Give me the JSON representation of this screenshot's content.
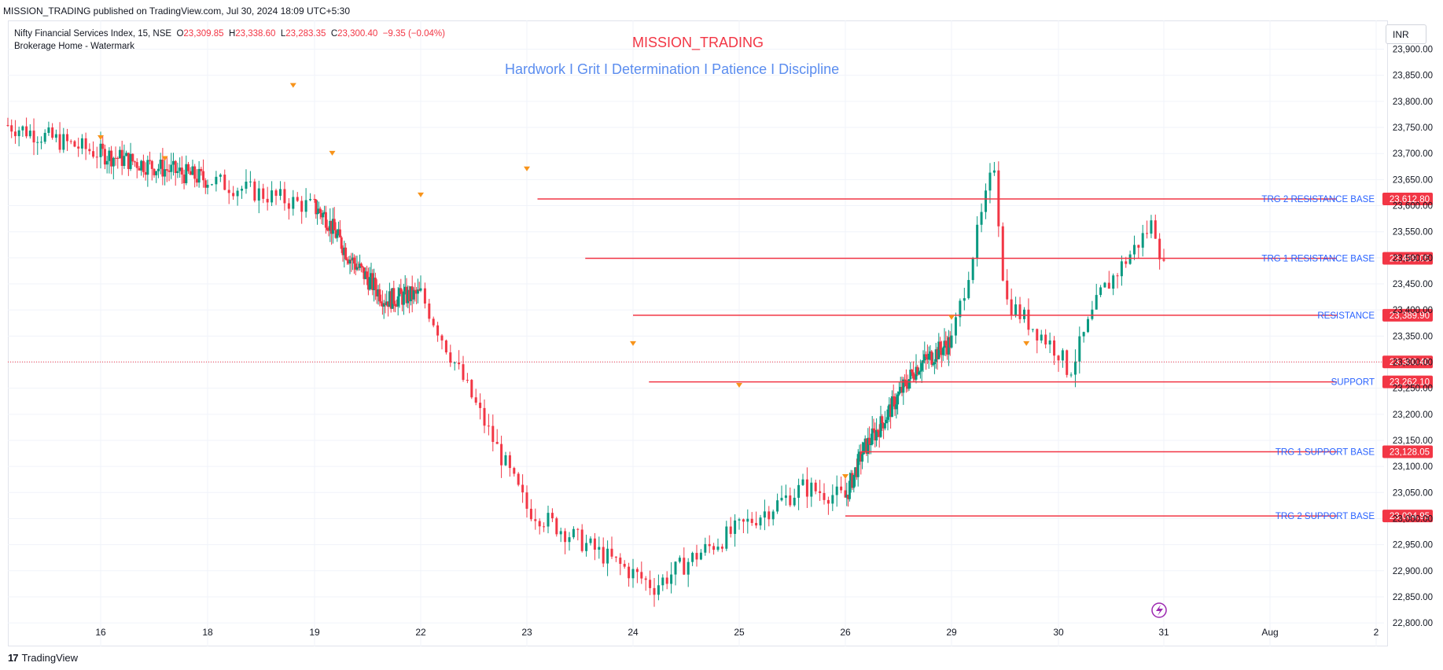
{
  "header": {
    "publish_line": "MISSION_TRADING published on TradingView.com, Jul 30, 2024 18:09 UTC+5:30"
  },
  "legend": {
    "symbol": "Nifty Financial Services Index, 15, NSE",
    "o_label": "O",
    "o_value": "23,309.85",
    "h_label": "H",
    "h_value": "23,338.60",
    "l_label": "L",
    "l_value": "23,283.35",
    "c_label": "C",
    "c_value": "23,300.40",
    "change": "−9.35 (−0.04%)",
    "indicator": "Brokerage Home - Watermark"
  },
  "watermark": {
    "title": "MISSION_TRADING",
    "subtitle": "Hardwork I Grit I Determination I Patience I Discipline"
  },
  "currency": "INR",
  "footer": {
    "logo": "17",
    "brand": "TradingView"
  },
  "colors": {
    "up": "#089981",
    "down": "#f23645",
    "level_line": "#f23645",
    "level_text": "#2962ff",
    "marker": "#f7931a",
    "grid": "#f0f3fa"
  },
  "chart_data": {
    "type": "candlestick",
    "ylim": [
      22770,
      23925
    ],
    "yticks": [
      22800,
      22850,
      22900,
      22950,
      23000,
      23050,
      23100,
      23150,
      23200,
      23250,
      23300,
      23350,
      23400,
      23450,
      23500,
      23550,
      23600,
      23650,
      23700,
      23750,
      23800,
      23850,
      23900
    ],
    "ytick_labels": [
      "22,800.00",
      "22,850.00",
      "22,900.00",
      "22,950.00",
      "23,000.00",
      "23,050.00",
      "23,100.00",
      "23,150.00",
      "23,200.00",
      "23,250.00",
      "23,300.00",
      "23,350.00",
      "23,400.00",
      "23,450.00",
      "23,500.00",
      "23,550.00",
      "23,600.00",
      "23,650.00",
      "23,700.00",
      "23,750.00",
      "23,800.00",
      "23,850.00",
      "23,900.00"
    ],
    "xticks": [
      "16",
      "18",
      "19",
      "22",
      "23",
      "24",
      "25",
      "26",
      "29",
      "30",
      "31",
      "Aug",
      "2"
    ],
    "last_price": 23300.4,
    "last_price_label": "23,300.40",
    "path": [
      [
        0,
        23660
      ],
      [
        3,
        23760
      ],
      [
        5,
        23700
      ],
      [
        7,
        23720
      ],
      [
        9,
        23690
      ],
      [
        10,
        23640
      ],
      [
        11,
        23700
      ],
      [
        13,
        23820
      ],
      [
        14.2,
        23830
      ],
      [
        14.9,
        23760
      ],
      [
        16,
        23700
      ],
      [
        18,
        23650
      ],
      [
        19.3,
        23580
      ],
      [
        20,
        23500
      ],
      [
        21,
        23420
      ],
      [
        22,
        23430
      ],
      [
        23,
        23020
      ],
      [
        24.2,
        22870
      ],
      [
        24.6,
        22930
      ],
      [
        25.6,
        23060
      ],
      [
        26,
        23040
      ],
      [
        26.5,
        23130
      ],
      [
        27,
        23180
      ],
      [
        28,
        23290
      ],
      [
        29,
        23340
      ],
      [
        29.2,
        23510
      ],
      [
        29.4,
        23680
      ],
      [
        29.5,
        23420
      ],
      [
        30,
        23320
      ],
      [
        30.1,
        23280
      ],
      [
        30.4,
        23430
      ],
      [
        30.8,
        23540
      ],
      [
        30.9,
        23570
      ],
      [
        31,
        23480
      ],
      [
        31.05,
        23310
      ],
      [
        31.2,
        23300
      ]
    ],
    "levels": [
      {
        "label": "TRG 2 RESISTANCE BASE",
        "price": 23612.8,
        "price_label": "23,612.80",
        "from": 23.1
      },
      {
        "label": "TRG 1 RESISTANCE BASE",
        "price": 23499.05,
        "price_label": "23,499.05",
        "from": 23.55
      },
      {
        "label": "RESISTANCE",
        "price": 23389.9,
        "price_label": "23,389.90",
        "from": 24.0
      },
      {
        "label": "SUPPORT",
        "price": 23262.1,
        "price_label": "23,262.10",
        "from": 24.15
      },
      {
        "label": "TRG 1  SUPPORT  BASE",
        "price": 23128.05,
        "price_label": "23,128.05",
        "from": 26.45
      },
      {
        "label": "TRG 2  SUPPORT  BASE",
        "price": 23004.95,
        "price_label": "23,004.95",
        "from": 26.0
      }
    ],
    "markers": [
      [
        16,
        23720
      ],
      [
        18.8,
        23820
      ],
      [
        17.2,
        23680
      ],
      [
        19.5,
        23690
      ],
      [
        22,
        23610
      ],
      [
        23,
        23660
      ],
      [
        24,
        23325
      ],
      [
        25,
        23245
      ],
      [
        26,
        23070
      ],
      [
        29,
        23375
      ],
      [
        29.7,
        23325
      ]
    ],
    "grid": true
  }
}
